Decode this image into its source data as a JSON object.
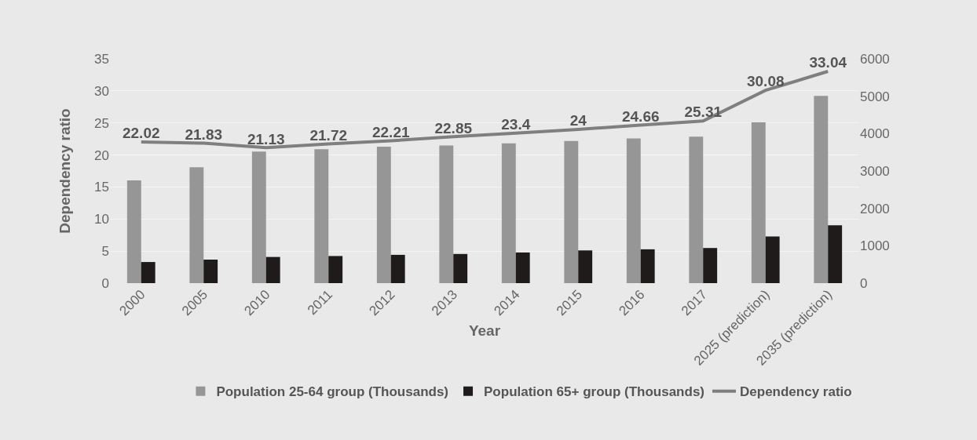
{
  "chart_data": {
    "type": "bar",
    "xlabel": "Year",
    "ylabel": "Dependency ratio",
    "categories": [
      "2000",
      "2005",
      "2010",
      "2011",
      "2012",
      "2013",
      "2014",
      "2015",
      "2016",
      "2017",
      "2025 (prediction)",
      "2035 (prediction)"
    ],
    "series": [
      {
        "name": "Population 25-64 group (Thousands)",
        "color": "#969696",
        "axis": "y2",
        "values": [
          2750,
          3100,
          3520,
          3580,
          3650,
          3680,
          3740,
          3800,
          3870,
          3920,
          4300,
          5010
        ]
      },
      {
        "name": "Population 65+ group (Thousands)",
        "color": "#1e1b1a",
        "axis": "y2",
        "values": [
          565,
          630,
          700,
          725,
          757,
          780,
          820,
          875,
          905,
          940,
          1250,
          1545
        ]
      },
      {
        "name": "Dependency ratio",
        "type": "line",
        "color": "#7f7f7f",
        "values": [
          22.02,
          21.83,
          21.13,
          21.72,
          22.21,
          22.85,
          23.4,
          24,
          24.66,
          25.31,
          30.08,
          33.04
        ],
        "data_labels": true
      }
    ],
    "ylim": [
      0,
      35
    ],
    "yticks": [
      0,
      5,
      10,
      15,
      20,
      25,
      30,
      35
    ],
    "y2lim": [
      0,
      6000
    ],
    "y2ticks": [
      0,
      1000,
      2000,
      3000,
      4000,
      5000,
      6000
    ],
    "grid": "y",
    "legend": "bottom"
  }
}
